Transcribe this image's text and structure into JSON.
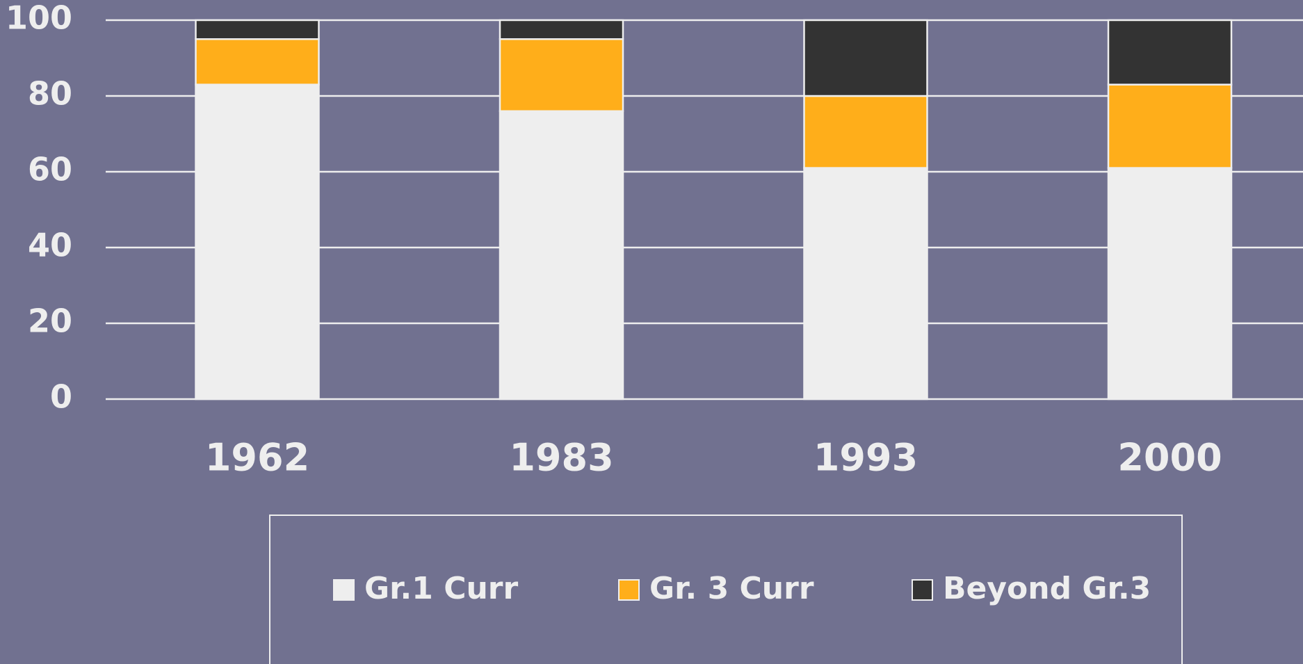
{
  "chart_data": {
    "type": "stacked_bar",
    "categories": [
      "1962",
      "1983",
      "1993",
      "2000"
    ],
    "series": [
      {
        "name": "Gr.1 Curr",
        "color": "#eeeeee",
        "values": [
          83,
          76,
          61,
          61
        ]
      },
      {
        "name": "Gr. 3 Curr",
        "color": "#ffae1a",
        "values": [
          12,
          19,
          19,
          22
        ]
      },
      {
        "name": "Beyond Gr.3",
        "color": "#333333",
        "values": [
          5,
          5,
          20,
          17
        ]
      }
    ],
    "ylim": [
      0,
      100
    ],
    "yticks": [
      0,
      20,
      40,
      60,
      80,
      100
    ],
    "grid": true,
    "legend": "bottom"
  }
}
